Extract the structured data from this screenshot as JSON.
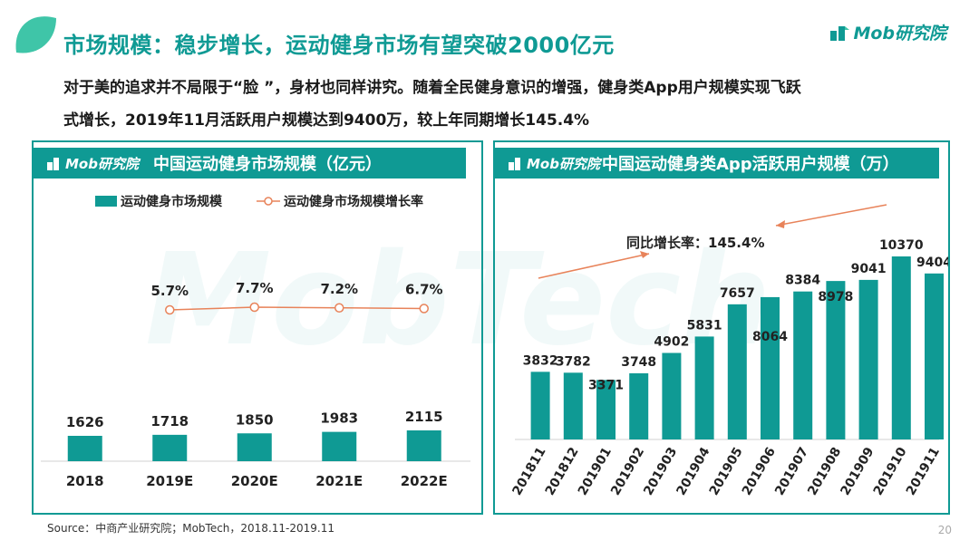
{
  "title": "市场规模：稳步增长，运动健身市场有望突破2000亿元",
  "brand": "Mob研究院",
  "watermark": "MobTech",
  "intro_line1": "对于美的追求并不局限于“脸 ”，身材也同样讲究。随着全民健身意识的增强，健身类App用户规模实现飞跃",
  "intro_line2": "式增长，2019年11月活跃用户规模达到9400万，较上年同期增长145.4%",
  "left_panel": {
    "brand": "Mob研究院",
    "title": "中国运动健身市场规模（亿元）"
  },
  "right_panel": {
    "brand": "Mob研究院",
    "title": "中国运动健身类App活跃用户规模（万）"
  },
  "source": "Source：中商产业研究院；MobTech，2018.11-2019.11",
  "page_number": "20",
  "colors": {
    "accent": "#0f9a94",
    "line": "#e8835a"
  },
  "chart_data": [
    {
      "type": "bar",
      "title": "中国运动健身市场规模（亿元）",
      "categories": [
        "2018",
        "2019E",
        "2020E",
        "2021E",
        "2022E"
      ],
      "series": [
        {
          "name": "运动健身市场规模",
          "values": [
            1626,
            1718,
            1850,
            1983,
            2115
          ]
        },
        {
          "name": "运动健身市场规模增长率",
          "type": "line",
          "values": [
            null,
            5.7,
            7.7,
            7.2,
            6.7
          ],
          "labels": [
            "",
            "5.7%",
            "7.7%",
            "7.2%",
            "6.7%"
          ]
        }
      ],
      "legend": "top"
    },
    {
      "type": "bar",
      "title": "中国运动健身类App活跃用户规模（万）",
      "categories": [
        "201811",
        "201812",
        "201901",
        "201902",
        "201903",
        "201904",
        "201905",
        "201906",
        "201907",
        "201908",
        "201909",
        "201910",
        "201911"
      ],
      "values": [
        3832,
        3782,
        3371,
        3748,
        4902,
        5831,
        7657,
        8064,
        8384,
        8978,
        9041,
        10370,
        9404
      ],
      "annotation": "同比增长率：145.4%"
    }
  ]
}
